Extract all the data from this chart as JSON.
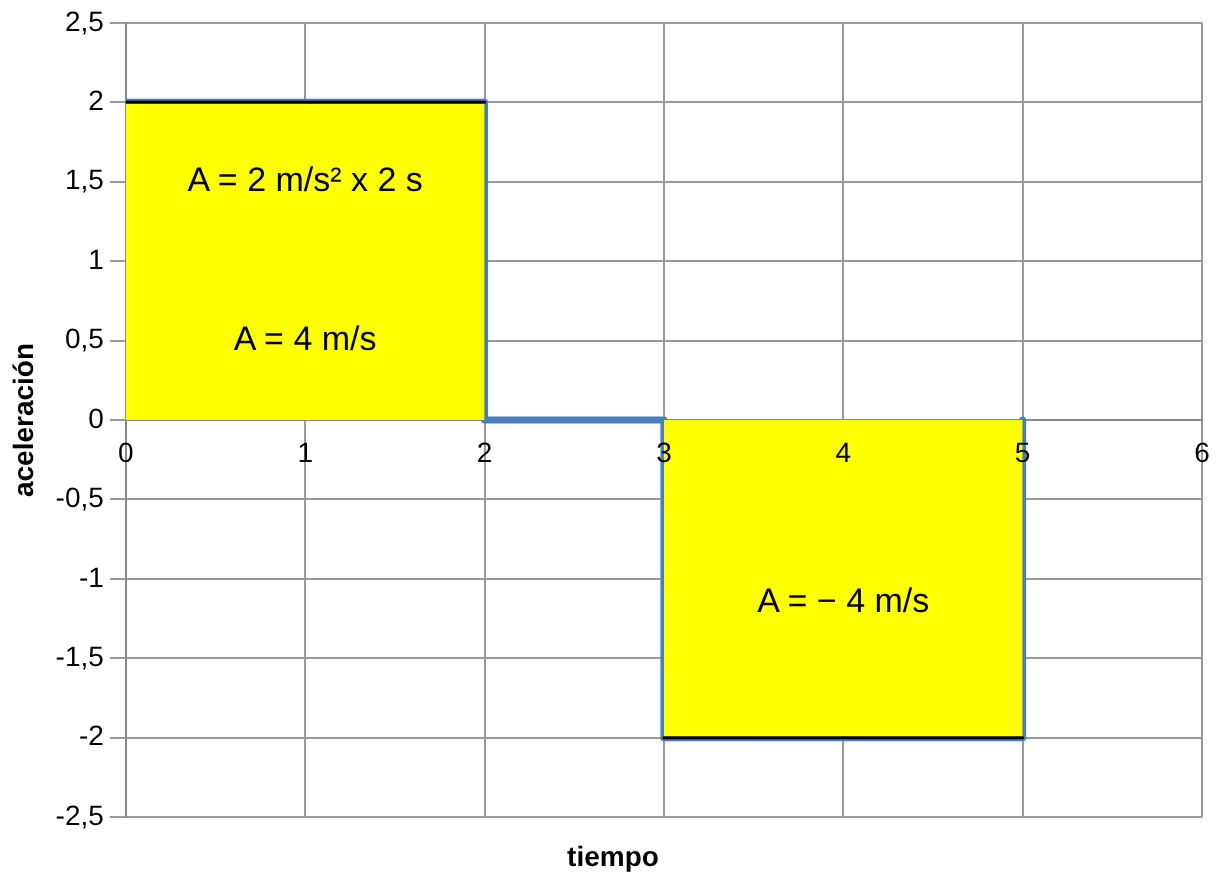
{
  "chart_data": {
    "type": "line",
    "xlabel": "tiempo",
    "ylabel": "aceleración",
    "xlim": [
      0,
      6
    ],
    "xticks": [
      0,
      1,
      2,
      3,
      4,
      5,
      6
    ],
    "ylim": [
      -2.5,
      2.5
    ],
    "yticks": [
      {
        "value": -2.5,
        "label": "-2,5"
      },
      -2,
      {
        "value": -1.5,
        "label": "-1,5"
      },
      -1,
      {
        "value": -0.5,
        "label": "-0,5"
      },
      0,
      {
        "value": 0.5,
        "label": "0,5"
      },
      1,
      {
        "value": 1.5,
        "label": "1,5"
      },
      2,
      {
        "value": 2.5,
        "label": "2,5"
      }
    ],
    "grid": true,
    "legend": false,
    "marker": "none",
    "line_style": "solid",
    "series": [
      {
        "type": "area",
        "color": "#ffff00",
        "x": [
          0,
          2
        ],
        "values": [
          2,
          2
        ]
      },
      {
        "type": "area",
        "color": "#ffff00",
        "x": [
          3,
          5
        ],
        "values": [
          -2,
          -2
        ]
      },
      {
        "type": "line",
        "color": "#4a7ebb",
        "x": [
          0,
          2,
          2,
          3,
          3,
          5,
          5
        ],
        "values": [
          2,
          2,
          0,
          0,
          -2,
          -2,
          0
        ]
      }
    ],
    "annotations": [
      "A = 2 m/s² x 2 s",
      "A = 4 m/s",
      "A = − 4 m/s"
    ]
  }
}
